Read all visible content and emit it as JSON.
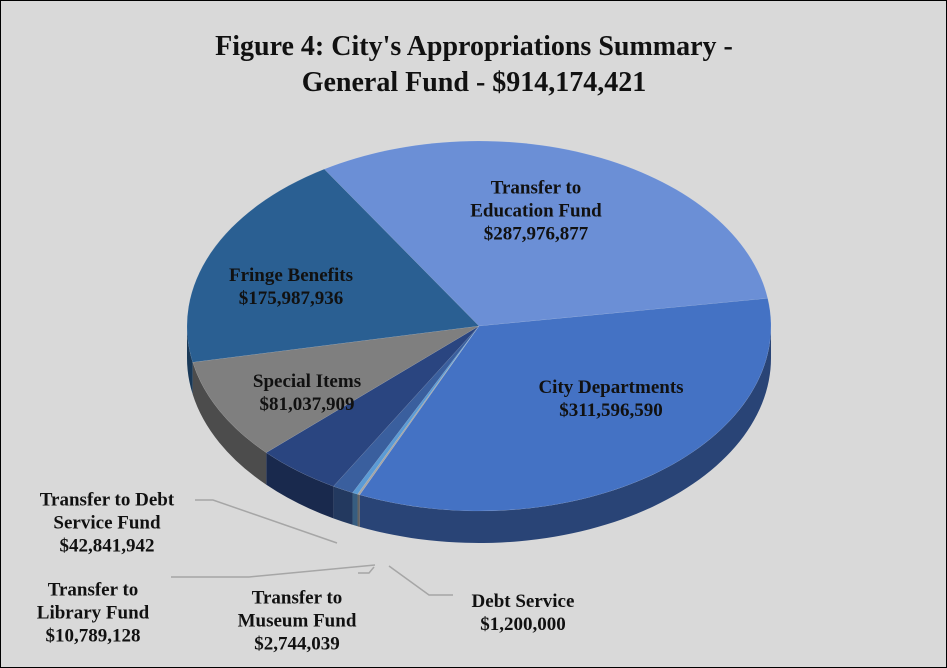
{
  "chart_data": {
    "type": "pie",
    "title": "Figure 4: City's Appropriations Summary - General Fund - $914,174,421",
    "categories": [
      "Transfer to Education Fund",
      "City Departments",
      "Debt Service",
      "Transfer to Museum Fund",
      "Transfer to Library Fund",
      "Transfer to Debt Service Fund",
      "Special Items",
      "Fringe Benefits"
    ],
    "values": [
      287976877,
      311596590,
      1200000,
      2744039,
      10789128,
      42841942,
      81037909,
      175987936
    ],
    "value_labels": [
      "$287,976,877",
      "$311,596,590",
      "$1,200,000",
      "$2,744,039",
      "$10,789,128",
      "$42,841,942",
      "$81,037,909",
      "$175,987,936"
    ],
    "colors": [
      "#6b8fd6",
      "#4472c4",
      "#a5a5a5",
      "#5b9bd5",
      "#3a5f9e",
      "#2a4580",
      "#7f7f7f",
      "#2a5f92"
    ]
  }
}
